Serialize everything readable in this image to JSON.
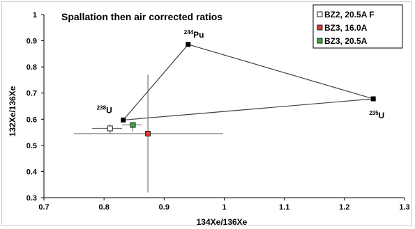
{
  "chart_data": {
    "type": "scatter",
    "title": "Spallation then air corrected ratios",
    "xlabel": "134Xe/136Xe",
    "ylabel": "132Xe/136Xe",
    "xlim": [
      0.7,
      1.3
    ],
    "ylim": [
      0.3,
      1.0
    ],
    "x_ticks": [
      "0.7",
      "0.8",
      "0.9",
      "1",
      "1.1",
      "1.2",
      "1.3"
    ],
    "y_ticks": [
      "0.3",
      "0.4",
      "0.5",
      "0.6",
      "0.7",
      "0.8",
      "0.9",
      "1"
    ],
    "series": [
      {
        "name": "BZ2, 20.5A F",
        "color": "#ffffff",
        "points": [
          {
            "x": 0.81,
            "y": 0.565,
            "xerr": [
              0.03,
              0.02
            ],
            "yerr": [
              0.02,
              0.015
            ]
          }
        ]
      },
      {
        "name": "BZ3, 16.0A",
        "color": "#e2382c",
        "points": [
          {
            "x": 0.873,
            "y": 0.545,
            "xerr": [
              0.123,
              0.125
            ],
            "yerr": [
              0.225,
              0.225
            ]
          }
        ]
      },
      {
        "name": "BZ3, 20.5A",
        "color": "#3aa83a",
        "points": [
          {
            "x": 0.848,
            "y": 0.578,
            "xerr": [
              0.018,
              0.015
            ],
            "yerr": [
              0.025,
              0.01
            ]
          }
        ]
      }
    ],
    "end_members": [
      {
        "label_mass": "238",
        "label_el": "U",
        "x": 0.832,
        "y": 0.597
      },
      {
        "label_mass": "244",
        "label_el": "Pu",
        "x": 0.94,
        "y": 0.886
      },
      {
        "label_mass": "235",
        "label_el": "U",
        "x": 1.248,
        "y": 0.678
      }
    ],
    "triangle_color": "#404040",
    "grid": false,
    "legend_position": "top-right"
  }
}
